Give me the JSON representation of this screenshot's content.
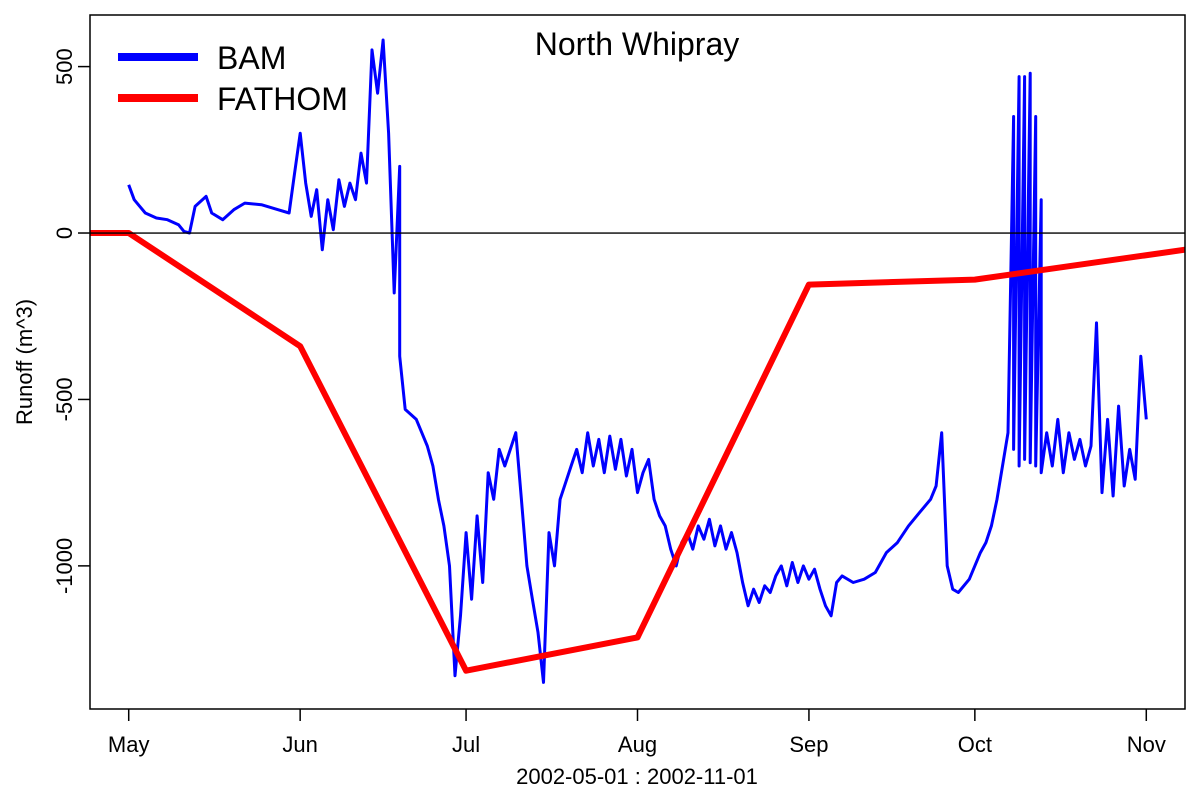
{
  "chart_data": {
    "type": "line",
    "title": "North Whipray",
    "xlabel": "2002-05-01 : 2002-11-01",
    "ylabel": "Runoff (m^3)",
    "x_range": [
      "2002-04-24",
      "2002-11-08"
    ],
    "ylim": [
      -1430,
      655
    ],
    "x_ticks": [
      {
        "date": "2002-05-01",
        "label": "May"
      },
      {
        "date": "2002-06-01",
        "label": "Jun"
      },
      {
        "date": "2002-07-01",
        "label": "Jul"
      },
      {
        "date": "2002-08-01",
        "label": "Aug"
      },
      {
        "date": "2002-09-01",
        "label": "Sep"
      },
      {
        "date": "2002-10-01",
        "label": "Oct"
      },
      {
        "date": "2002-11-01",
        "label": "Nov"
      }
    ],
    "y_ticks": [
      {
        "value": 500,
        "label": "500"
      },
      {
        "value": 0,
        "label": "0"
      },
      {
        "value": -500,
        "label": "-500"
      },
      {
        "value": -1000,
        "label": "-1000"
      }
    ],
    "reference_line": 0,
    "grid": false,
    "legend": {
      "position": "top-left",
      "entries": [
        {
          "label": "BAM",
          "color": "#0000ff"
        },
        {
          "label": "FATHOM",
          "color": "#ff0000"
        }
      ]
    },
    "series": [
      {
        "name": "BAM",
        "color": "#0000ff",
        "points": [
          [
            "2002-05-01",
            145
          ],
          [
            "2002-05-02",
            100
          ],
          [
            "2002-05-03",
            80
          ],
          [
            "2002-05-04",
            60
          ],
          [
            "2002-05-06",
            45
          ],
          [
            "2002-05-08",
            40
          ],
          [
            "2002-05-10",
            25
          ],
          [
            "2002-05-11",
            5
          ],
          [
            "2002-05-12",
            0
          ],
          [
            "2002-05-13",
            80
          ],
          [
            "2002-05-15",
            110
          ],
          [
            "2002-05-16",
            60
          ],
          [
            "2002-05-18",
            40
          ],
          [
            "2002-05-20",
            70
          ],
          [
            "2002-05-22",
            90
          ],
          [
            "2002-05-25",
            85
          ],
          [
            "2002-05-28",
            70
          ],
          [
            "2002-05-30",
            60
          ],
          [
            "2002-05-31",
            180
          ],
          [
            "2002-06-01",
            300
          ],
          [
            "2002-06-02",
            150
          ],
          [
            "2002-06-03",
            50
          ],
          [
            "2002-06-04",
            130
          ],
          [
            "2002-06-05",
            -50
          ],
          [
            "2002-06-06",
            100
          ],
          [
            "2002-06-07",
            10
          ],
          [
            "2002-06-08",
            160
          ],
          [
            "2002-06-09",
            80
          ],
          [
            "2002-06-10",
            150
          ],
          [
            "2002-06-11",
            100
          ],
          [
            "2002-06-12",
            240
          ],
          [
            "2002-06-13",
            150
          ],
          [
            "2002-06-14",
            550
          ],
          [
            "2002-06-15",
            420
          ],
          [
            "2002-06-16",
            580
          ],
          [
            "2002-06-17",
            300
          ],
          [
            "2002-06-18",
            -180
          ],
          [
            "2002-06-19",
            200
          ],
          [
            "2002-06-19",
            -370
          ],
          [
            "2002-06-20",
            -530
          ],
          [
            "2002-06-22",
            -560
          ],
          [
            "2002-06-23",
            -600
          ],
          [
            "2002-06-24",
            -640
          ],
          [
            "2002-06-25",
            -700
          ],
          [
            "2002-06-26",
            -800
          ],
          [
            "2002-06-27",
            -880
          ],
          [
            "2002-06-28",
            -1000
          ],
          [
            "2002-06-29",
            -1330
          ],
          [
            "2002-06-30",
            -1150
          ],
          [
            "2002-07-01",
            -900
          ],
          [
            "2002-07-02",
            -1100
          ],
          [
            "2002-07-03",
            -850
          ],
          [
            "2002-07-04",
            -1050
          ],
          [
            "2002-07-05",
            -720
          ],
          [
            "2002-07-06",
            -800
          ],
          [
            "2002-07-07",
            -650
          ],
          [
            "2002-07-08",
            -700
          ],
          [
            "2002-07-09",
            -650
          ],
          [
            "2002-07-10",
            -600
          ],
          [
            "2002-07-11",
            -800
          ],
          [
            "2002-07-12",
            -1000
          ],
          [
            "2002-07-13",
            -1100
          ],
          [
            "2002-07-14",
            -1200
          ],
          [
            "2002-07-15",
            -1350
          ],
          [
            "2002-07-16",
            -900
          ],
          [
            "2002-07-17",
            -1000
          ],
          [
            "2002-07-18",
            -800
          ],
          [
            "2002-07-19",
            -750
          ],
          [
            "2002-07-20",
            -700
          ],
          [
            "2002-07-21",
            -650
          ],
          [
            "2002-07-22",
            -720
          ],
          [
            "2002-07-23",
            -600
          ],
          [
            "2002-07-24",
            -700
          ],
          [
            "2002-07-25",
            -620
          ],
          [
            "2002-07-26",
            -720
          ],
          [
            "2002-07-27",
            -610
          ],
          [
            "2002-07-28",
            -710
          ],
          [
            "2002-07-29",
            -620
          ],
          [
            "2002-07-30",
            -730
          ],
          [
            "2002-07-31",
            -650
          ],
          [
            "2002-08-01",
            -780
          ],
          [
            "2002-08-02",
            -720
          ],
          [
            "2002-08-03",
            -680
          ],
          [
            "2002-08-04",
            -800
          ],
          [
            "2002-08-05",
            -850
          ],
          [
            "2002-08-06",
            -880
          ],
          [
            "2002-08-07",
            -950
          ],
          [
            "2002-08-08",
            -1000
          ],
          [
            "2002-08-09",
            -930
          ],
          [
            "2002-08-10",
            -900
          ],
          [
            "2002-08-11",
            -950
          ],
          [
            "2002-08-12",
            -880
          ],
          [
            "2002-08-13",
            -920
          ],
          [
            "2002-08-14",
            -860
          ],
          [
            "2002-08-15",
            -940
          ],
          [
            "2002-08-16",
            -880
          ],
          [
            "2002-08-17",
            -950
          ],
          [
            "2002-08-18",
            -900
          ],
          [
            "2002-08-19",
            -960
          ],
          [
            "2002-08-20",
            -1050
          ],
          [
            "2002-08-21",
            -1120
          ],
          [
            "2002-08-22",
            -1070
          ],
          [
            "2002-08-23",
            -1110
          ],
          [
            "2002-08-24",
            -1060
          ],
          [
            "2002-08-25",
            -1080
          ],
          [
            "2002-08-26",
            -1030
          ],
          [
            "2002-08-27",
            -1000
          ],
          [
            "2002-08-28",
            -1060
          ],
          [
            "2002-08-29",
            -990
          ],
          [
            "2002-08-30",
            -1050
          ],
          [
            "2002-08-31",
            -1000
          ],
          [
            "2002-09-01",
            -1040
          ],
          [
            "2002-09-02",
            -1010
          ],
          [
            "2002-09-03",
            -1070
          ],
          [
            "2002-09-04",
            -1120
          ],
          [
            "2002-09-05",
            -1150
          ],
          [
            "2002-09-06",
            -1050
          ],
          [
            "2002-09-07",
            -1030
          ],
          [
            "2002-09-09",
            -1050
          ],
          [
            "2002-09-11",
            -1040
          ],
          [
            "2002-09-13",
            -1020
          ],
          [
            "2002-09-15",
            -960
          ],
          [
            "2002-09-17",
            -930
          ],
          [
            "2002-09-19",
            -880
          ],
          [
            "2002-09-21",
            -840
          ],
          [
            "2002-09-23",
            -800
          ],
          [
            "2002-09-24",
            -760
          ],
          [
            "2002-09-25",
            -600
          ],
          [
            "2002-09-26",
            -1000
          ],
          [
            "2002-09-27",
            -1070
          ],
          [
            "2002-09-28",
            -1080
          ],
          [
            "2002-09-30",
            -1040
          ],
          [
            "2002-10-02",
            -960
          ],
          [
            "2002-10-03",
            -930
          ],
          [
            "2002-10-04",
            -880
          ],
          [
            "2002-10-05",
            -800
          ],
          [
            "2002-10-06",
            -700
          ],
          [
            "2002-10-07",
            -600
          ],
          [
            "2002-10-08",
            350
          ],
          [
            "2002-10-08",
            -650
          ],
          [
            "2002-10-09",
            470
          ],
          [
            "2002-10-09",
            -700
          ],
          [
            "2002-10-10",
            470
          ],
          [
            "2002-10-10",
            -680
          ],
          [
            "2002-10-11",
            480
          ],
          [
            "2002-10-11",
            -690
          ],
          [
            "2002-10-12",
            350
          ],
          [
            "2002-10-12",
            -700
          ],
          [
            "2002-10-13",
            100
          ],
          [
            "2002-10-13",
            -720
          ],
          [
            "2002-10-14",
            -600
          ],
          [
            "2002-10-15",
            -700
          ],
          [
            "2002-10-16",
            -560
          ],
          [
            "2002-10-17",
            -720
          ],
          [
            "2002-10-18",
            -600
          ],
          [
            "2002-10-19",
            -680
          ],
          [
            "2002-10-20",
            -620
          ],
          [
            "2002-10-21",
            -700
          ],
          [
            "2002-10-22",
            -640
          ],
          [
            "2002-10-23",
            -270
          ],
          [
            "2002-10-24",
            -780
          ],
          [
            "2002-10-25",
            -560
          ],
          [
            "2002-10-26",
            -790
          ],
          [
            "2002-10-27",
            -520
          ],
          [
            "2002-10-28",
            -760
          ],
          [
            "2002-10-29",
            -650
          ],
          [
            "2002-10-30",
            -740
          ],
          [
            "2002-10-31",
            -370
          ],
          [
            "2002-11-01",
            -560
          ]
        ]
      },
      {
        "name": "FATHOM",
        "color": "#ff0000",
        "points": [
          [
            "2002-04-24",
            0
          ],
          [
            "2002-05-01",
            0
          ],
          [
            "2002-06-01",
            -340
          ],
          [
            "2002-07-01",
            -1315
          ],
          [
            "2002-08-01",
            -1215
          ],
          [
            "2002-09-01",
            -155
          ],
          [
            "2002-10-01",
            -140
          ],
          [
            "2002-11-08",
            -50
          ]
        ]
      }
    ]
  }
}
